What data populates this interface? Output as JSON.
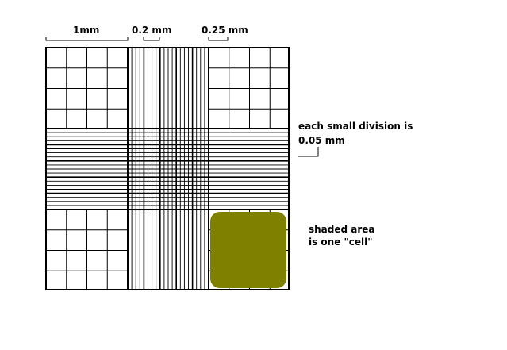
{
  "labels": {
    "one_mm": "1mm",
    "point_two_mm": "0.2 mm",
    "point_two_five_mm": "0.25 mm",
    "small_division_line1": "each small division is",
    "small_division_line2": "0.05 mm",
    "shaded_line1": "shaded area",
    "shaded_line2": "is one \"cell\""
  },
  "colors": {
    "grid": "#000000",
    "shaded_cell": "#808000",
    "background": "#ffffff"
  }
}
